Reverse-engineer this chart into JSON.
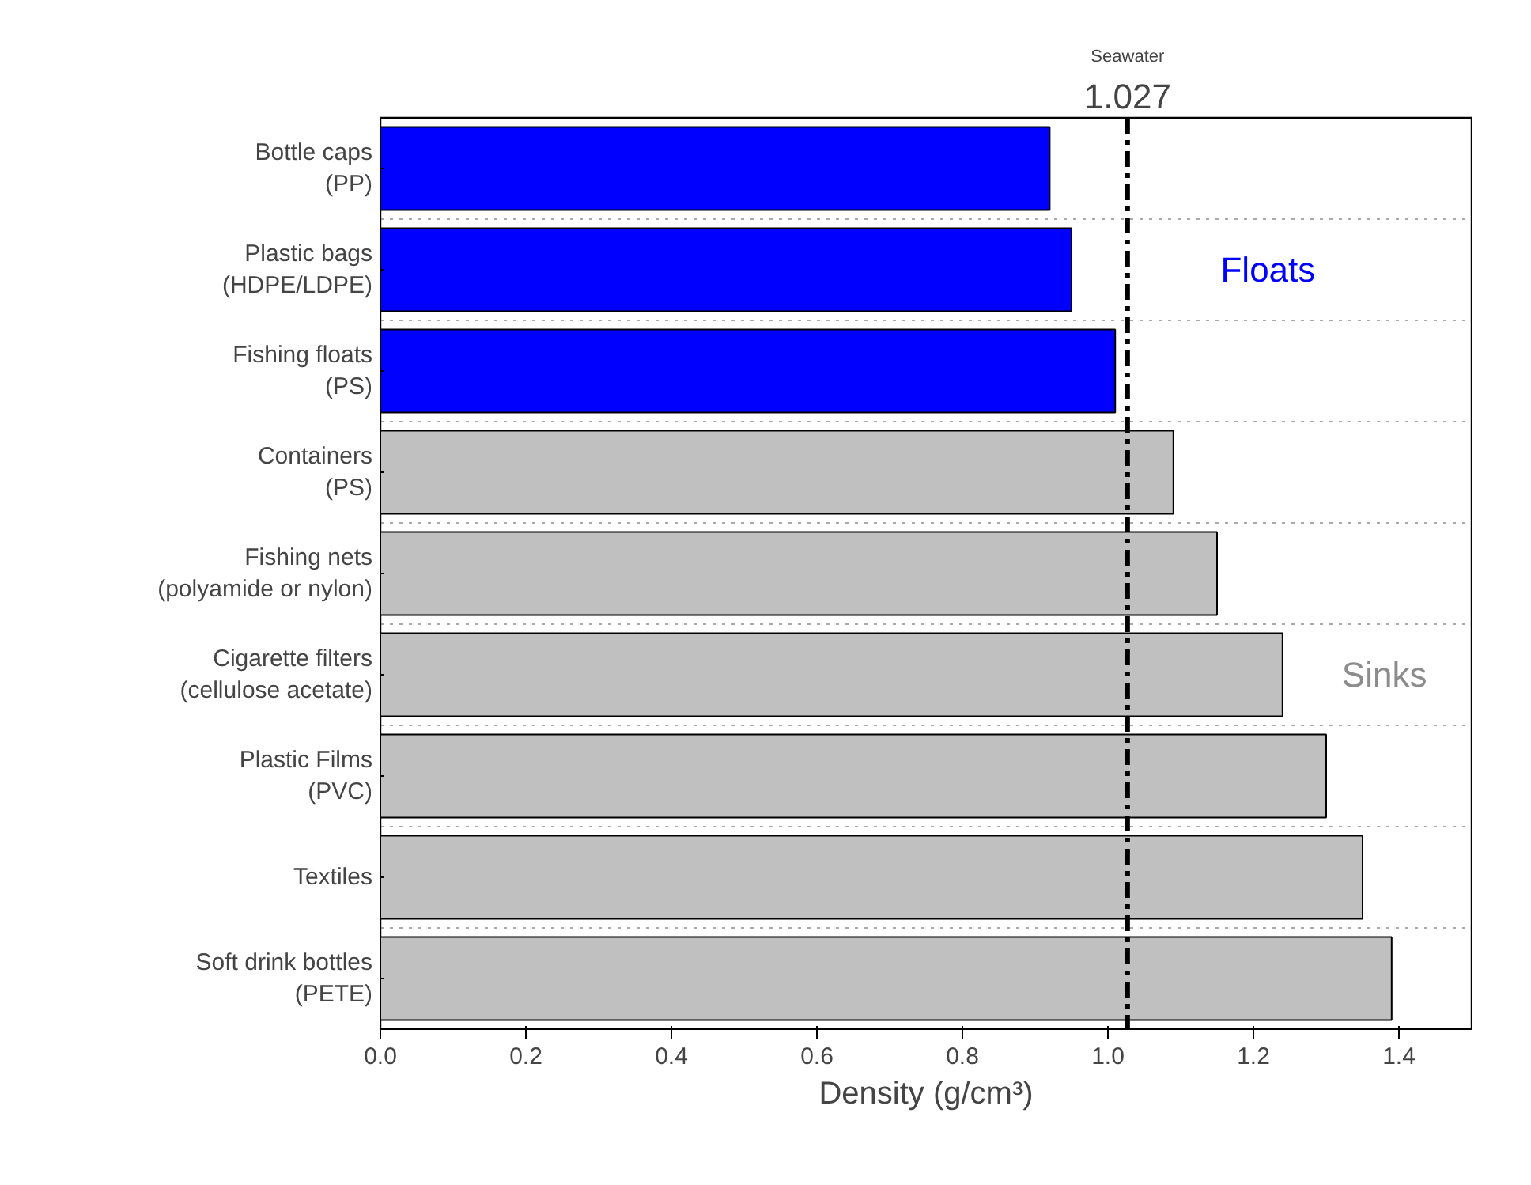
{
  "chart_data": {
    "type": "bar",
    "orientation": "horizontal",
    "xlabel": "Density (g/cm³)",
    "categories": [
      "Bottle caps\n(PP)",
      "Plastic bags\n(HDPE/LDPE)",
      "Fishing floats\n(PS)",
      "Containers\n(PS)",
      "Fishing nets\n(polyamide or nylon)",
      "Cigarette filters\n(cellulose acetate)",
      "Plastic Films\n(PVC)",
      "Textiles",
      "Soft drink bottles\n(PETE)"
    ],
    "series": [
      {
        "color": "#0000ff",
        "values": [
          0.92,
          0.95,
          1.01,
          null,
          null,
          null,
          null,
          null,
          null
        ]
      },
      {
        "color": "#c0c0c0",
        "values": [
          null,
          null,
          null,
          1.09,
          1.15,
          1.24,
          1.3,
          1.35,
          1.39
        ]
      }
    ],
    "xlim": [
      0,
      1.5
    ],
    "xticks": [
      {
        "value": 0,
        "label": "0.0"
      },
      0.2,
      0.4,
      0.6,
      0.8,
      {
        "value": 1,
        "label": "1.0"
      },
      1.2,
      1.4
    ],
    "ref_lines": [
      {
        "axis": "x",
        "value": 1.027,
        "label": "1.027",
        "color": "#000000",
        "line_style": "dashdot"
      }
    ],
    "annotations": [
      "Seawater",
      "Floats",
      "Sinks"
    ]
  }
}
